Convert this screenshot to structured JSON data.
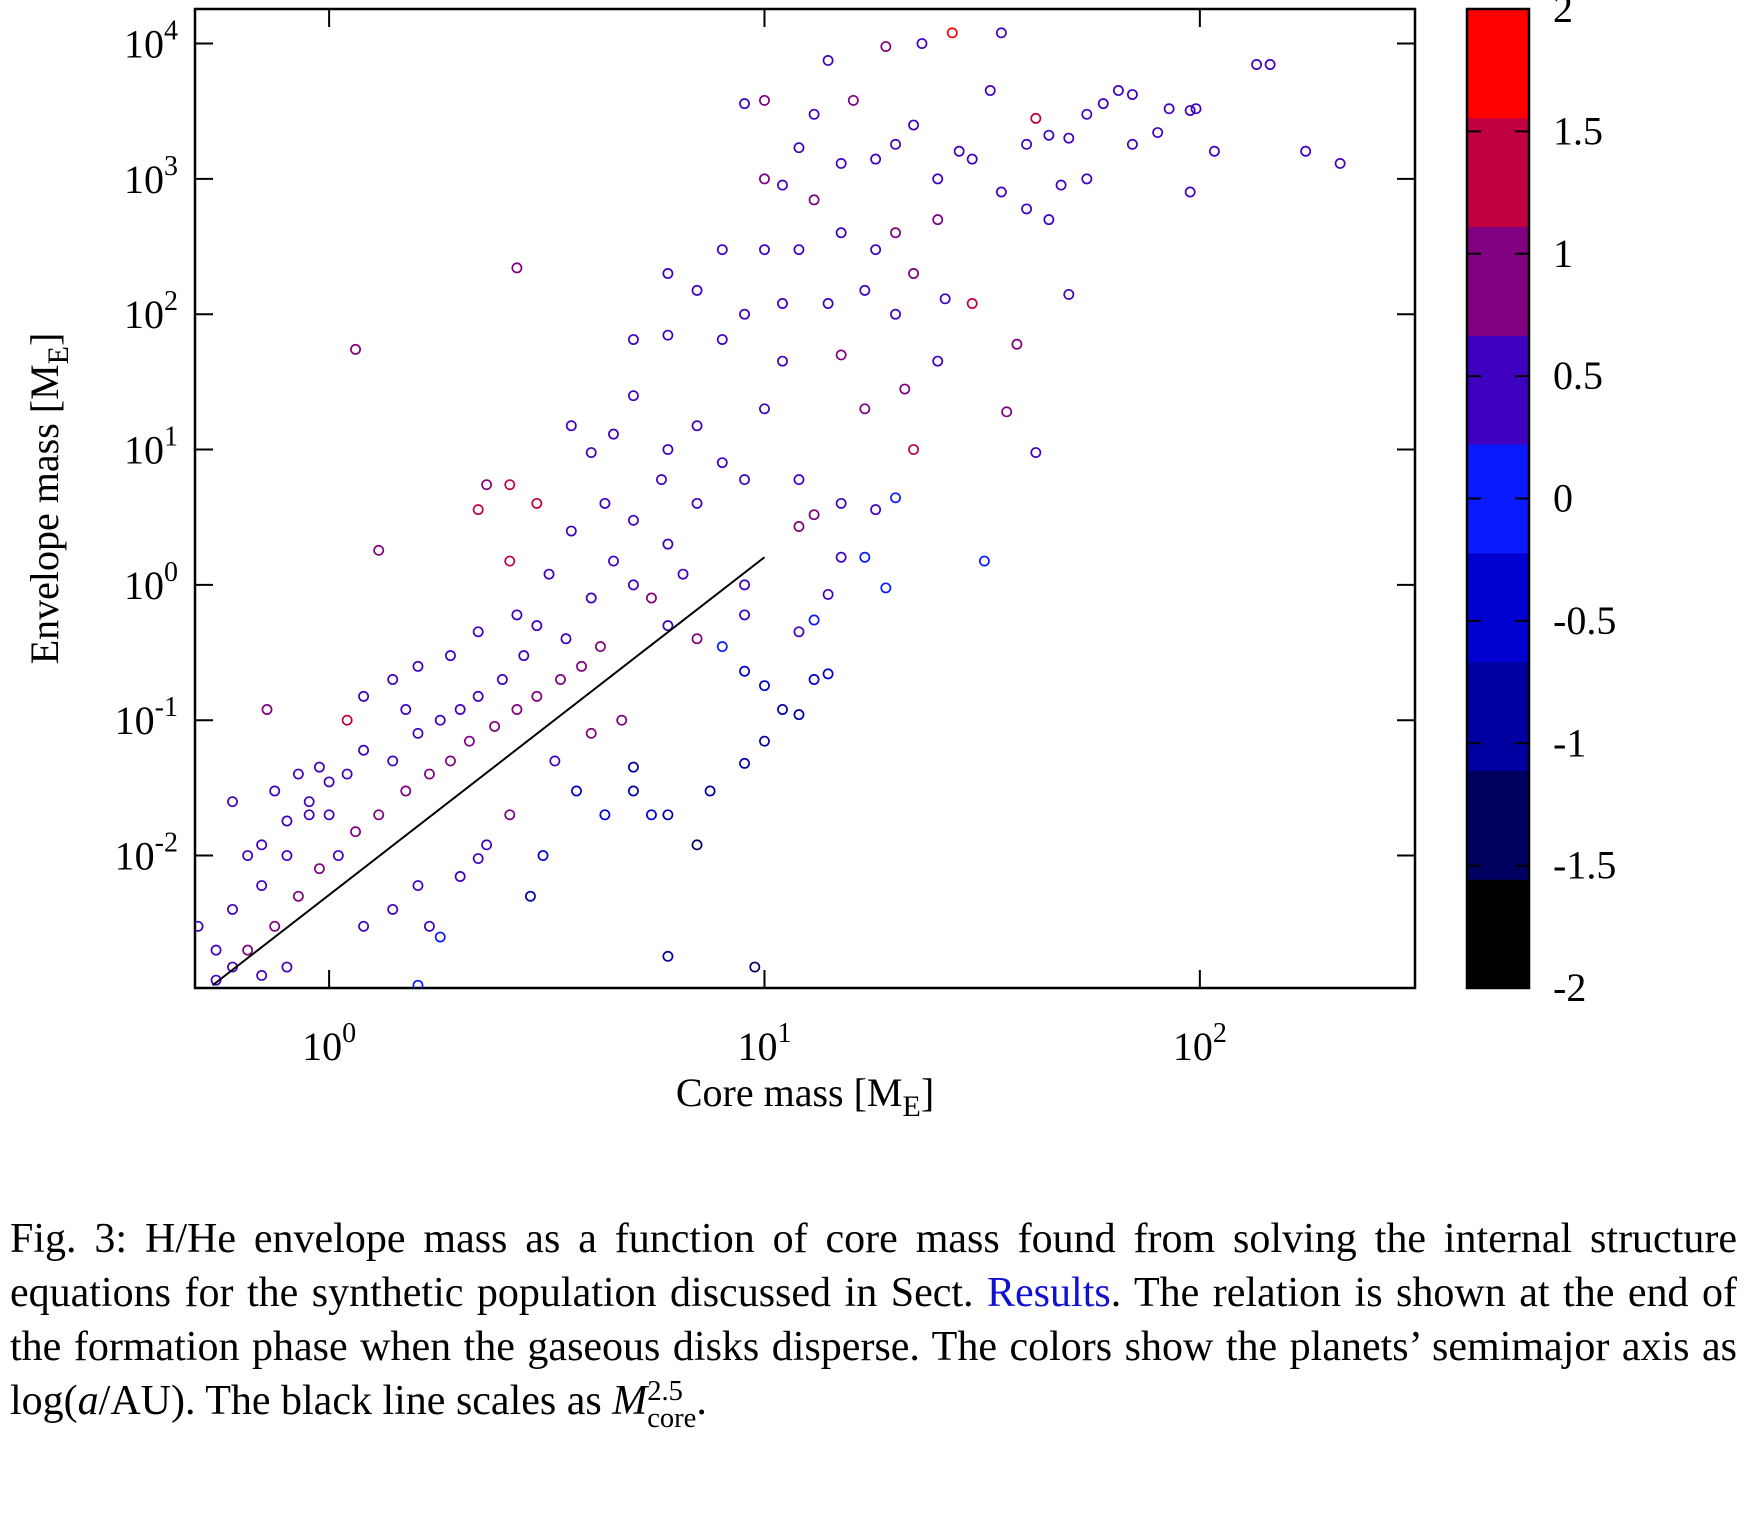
{
  "chart_data": {
    "type": "scatter",
    "xlabel": [
      "Core mass [M",
      "E",
      "]"
    ],
    "ylabel": [
      "Envelope mass [M",
      "E",
      "]"
    ],
    "log_x": true,
    "log_y": true,
    "xlim": [
      0.492,
      312
    ],
    "ylim": [
      0.00105,
      18000
    ],
    "xticks": [
      {
        "value": 1,
        "label": "10",
        "sup": "0"
      },
      {
        "value": 10,
        "label": "10",
        "sup": "1"
      },
      {
        "value": 100,
        "label": "10",
        "sup": "2"
      }
    ],
    "yticks": [
      {
        "value": 0.01,
        "label": "10",
        "sup": "-2"
      },
      {
        "value": 0.1,
        "label": "10",
        "sup": "-1"
      },
      {
        "value": 1,
        "label": "10",
        "sup": "0"
      },
      {
        "value": 10,
        "label": "10",
        "sup": "1"
      },
      {
        "value": 100,
        "label": "10",
        "sup": "2"
      },
      {
        "value": 1000,
        "label": "10",
        "sup": "3"
      },
      {
        "value": 10000,
        "label": "10",
        "sup": "4"
      }
    ],
    "colorbar": {
      "lim": [
        -2,
        2
      ],
      "ticks": [
        -2,
        -1.5,
        -1,
        -0.5,
        0,
        0.5,
        1,
        1.5,
        2
      ],
      "colors": [
        "#000000",
        "#000060",
        "#0000a0",
        "#0000d0",
        "#0a1aff",
        "#4000c0",
        "#800080",
        "#c00040",
        "#ff0000"
      ]
    },
    "series": [
      {
        "x": [
          14,
          19,
          23,
          27,
          35,
          9,
          10,
          16,
          13,
          12,
          10,
          11,
          15,
          18,
          20,
          22,
          25,
          28,
          30,
          33,
          40,
          42,
          45,
          50,
          55,
          60,
          65,
          70,
          70,
          80,
          85,
          95,
          98,
          95,
          108,
          135,
          145,
          175,
          210,
          55,
          48,
          40,
          45,
          35,
          25,
          20,
          18,
          15,
          13,
          12,
          10,
          8,
          6,
          7,
          9,
          11,
          14,
          17,
          20,
          22,
          26,
          30,
          38,
          50,
          36,
          42,
          32,
          21,
          22,
          25,
          8,
          6,
          5,
          11,
          15,
          17,
          10,
          7,
          5,
          4,
          3.6,
          4.5,
          6,
          8,
          9,
          12,
          13,
          15,
          18,
          20,
          12,
          15,
          17,
          19,
          14,
          12,
          13,
          9,
          9,
          8,
          9,
          10,
          11,
          12,
          13,
          14,
          10,
          9,
          7.5,
          7,
          9.5,
          6,
          6,
          5.5,
          5,
          5,
          4.3,
          3.7,
          3.1,
          2.9,
          2.2,
          1.8,
          1.6,
          6,
          7,
          6.5,
          5,
          5.5,
          4.5,
          4,
          3.5,
          3,
          2.8,
          2.5,
          2.2,
          2,
          1.8,
          1.6,
          1.5,
          1.4,
          1.2,
          1.1,
          1,
          0.9,
          0.8,
          0.7,
          0.6,
          0.55,
          0.65,
          0.75,
          0.85,
          0.95,
          1.05,
          1.15,
          1.3,
          1.5,
          1.7,
          1.9,
          2.1,
          2.4,
          2.7,
          3,
          3.4,
          3.8,
          4.2,
          0.7,
          0.8,
          0.9,
          1,
          1.1,
          1.3,
          0.72,
          1.15,
          2.7,
          2.3,
          2.6,
          3,
          2.2,
          2.6,
          0.6,
          0.65,
          0.75,
          0.85,
          0.95,
          1.2,
          1.4,
          1.6,
          1.9,
          2.2,
          2.7,
          3.2,
          3.6,
          4.3,
          5,
          5.8,
          6,
          7,
          0.55,
          0.6,
          0.7,
          0.8,
          1.2,
          1.4,
          1.6,
          1.7,
          2,
          2.3,
          2.6,
          3.3,
          4,
          4.7,
          0.5
        ],
        "values": [
          7500,
          9500,
          10000,
          12000,
          12000,
          3600,
          3800,
          3800,
          3000,
          1700,
          1000,
          900,
          1300,
          1400,
          1800,
          2500,
          1000,
          1600,
          1400,
          4500,
          1800,
          2800,
          2100,
          2000,
          3000,
          3600,
          4500,
          4200,
          1800,
          2200,
          3300,
          3200,
          3300,
          800,
          1600,
          7000,
          7000,
          1600,
          1300,
          1000,
          900,
          600,
          500,
          800,
          500,
          400,
          300,
          400,
          700,
          300,
          300,
          300,
          200,
          150,
          100,
          120,
          120,
          150,
          100,
          200,
          130,
          120,
          60,
          140,
          19,
          9.5,
          1.5,
          28,
          10,
          45,
          65,
          70,
          65,
          45,
          50,
          20,
          20,
          15,
          25,
          9.5,
          15,
          13,
          10,
          8,
          6,
          6,
          3.3,
          4,
          3.6,
          4.4,
          2.7,
          1.6,
          1.6,
          0.95,
          0.85,
          0.45,
          0.55,
          1,
          0.6,
          0.35,
          0.23,
          0.18,
          0.12,
          0.11,
          0.2,
          0.22,
          0.07,
          0.048,
          0.03,
          0.012,
          0.0015,
          0.0018,
          0.02,
          0.02,
          0.045,
          0.03,
          0.02,
          0.03,
          0.01,
          0.005,
          0.0095,
          0.0025,
          0.0011,
          0.5,
          0.4,
          1.2,
          1,
          0.8,
          1.5,
          0.8,
          0.4,
          0.5,
          0.3,
          0.2,
          0.15,
          0.12,
          0.1,
          0.08,
          0.12,
          0.05,
          0.06,
          0.04,
          0.02,
          0.02,
          0.01,
          0.006,
          0.004,
          0.002,
          0.002,
          0.003,
          0.005,
          0.008,
          0.01,
          0.015,
          0.02,
          0.03,
          0.04,
          0.05,
          0.07,
          0.09,
          0.12,
          0.15,
          0.2,
          0.25,
          0.35,
          0.012,
          0.018,
          0.025,
          0.035,
          0.1,
          1.8,
          0.12,
          55,
          220,
          5.5,
          5.5,
          4,
          3.6,
          1.5,
          0.025,
          0.01,
          0.03,
          0.04,
          0.045,
          0.15,
          0.2,
          0.25,
          0.3,
          0.45,
          0.6,
          1.2,
          2.5,
          4,
          3,
          6,
          2,
          4,
          0.0012,
          0.0015,
          0.0013,
          0.0015,
          0.003,
          0.004,
          0.006,
          0.003,
          0.007,
          0.012,
          0.02,
          0.05,
          0.08,
          0.1,
          0.003
        ],
        "color_values": [
          0.6,
          0.7,
          0.6,
          1.7,
          0.5,
          0.5,
          0.8,
          1.1,
          0.5,
          0.5,
          0.9,
          0.5,
          0.6,
          0.5,
          0.5,
          0.5,
          0.6,
          0.5,
          0.6,
          0.6,
          0.5,
          1.5,
          0.5,
          0.5,
          0.5,
          0.5,
          0.6,
          0.6,
          0.6,
          0.5,
          0.5,
          0.5,
          0.5,
          0.5,
          0.5,
          0.5,
          0.5,
          0.5,
          0.5,
          0.5,
          0.5,
          0.6,
          0.6,
          0.5,
          0.7,
          0.8,
          0.6,
          0.5,
          1.1,
          0.6,
          0.5,
          0.5,
          0.5,
          0.5,
          0.6,
          0.5,
          0.5,
          0.6,
          0.6,
          0.8,
          0.6,
          1.4,
          1.1,
          0.4,
          1.0,
          0.3,
          0.2,
          0.7,
          1.2,
          0.6,
          0.5,
          0.5,
          0.4,
          0.5,
          0.7,
          0.7,
          0.5,
          0.5,
          0.4,
          0.6,
          0.4,
          0.5,
          0.5,
          0.5,
          0.6,
          0.6,
          1.0,
          0.6,
          0.4,
          0.2,
          0.7,
          0.4,
          0.2,
          0.2,
          0.4,
          0.3,
          0.2,
          0.3,
          0.3,
          0.2,
          -0.3,
          -0.5,
          -0.8,
          -0.8,
          -0.5,
          -0.6,
          -0.9,
          -1.0,
          -0.9,
          -1.2,
          -1.3,
          -1.1,
          -0.7,
          -0.6,
          -0.8,
          -0.7,
          -0.6,
          -0.5,
          -0.4,
          -0.7,
          0.5,
          0.2,
          0.2,
          0.5,
          0.7,
          0.5,
          0.5,
          0.7,
          0.5,
          0.5,
          0.5,
          0.5,
          0.6,
          0.5,
          0.5,
          0.5,
          0.5,
          0.5,
          0.5,
          0.5,
          0.5,
          0.5,
          0.5,
          0.5,
          0.5,
          0.5,
          0.5,
          0.5,
          0.9,
          1.0,
          0.9,
          0.9,
          0.6,
          0.8,
          0.9,
          1.0,
          0.9,
          0.9,
          0.9,
          0.8,
          1.0,
          0.9,
          1.0,
          1.0,
          0.9,
          0.4,
          0.4,
          0.3,
          0.3,
          1.2,
          0.9,
          1.1,
          0.9,
          1.0,
          1.1,
          1.3,
          1.4,
          1.2,
          1.2,
          0.4,
          0.3,
          0.4,
          0.5,
          0.4,
          0.6,
          0.6,
          0.5,
          0.5,
          0.5,
          0.5,
          0.5,
          0.5,
          0.5,
          0.5,
          0.5,
          0.5,
          0.5,
          0.5,
          0.6,
          0.5,
          0.5,
          0.5,
          0.5,
          0.6,
          0.4,
          0.6,
          0.6,
          0.7,
          0.6,
          0.7,
          0.7,
          0.5
        ]
      }
    ],
    "fit_line": {
      "x": [
        0.54,
        10
      ],
      "values": [
        0.0011,
        1.6
      ],
      "color": "#000000"
    }
  },
  "caption": [
    {
      "kind": "text",
      "text": "Fig. 3: H/He envelope mass as a function of core mass found from solving the internal structure equations for the synthetic population discussed in Sect. "
    },
    {
      "kind": "link",
      "text": "Results"
    },
    {
      "kind": "text",
      "text": ". The relation is shown at the end of the formation phase when the gaseous disks disperse. The colors show the planets’ semimajor axis as log("
    },
    {
      "kind": "italic",
      "text": "a"
    },
    {
      "kind": "text",
      "text": "/AU). The black line scales as "
    },
    {
      "kind": "italic",
      "text": "M"
    },
    {
      "kind": "supsub",
      "sup": "2.5",
      "sub": "core"
    },
    {
      "kind": "text",
      "text": "."
    }
  ]
}
